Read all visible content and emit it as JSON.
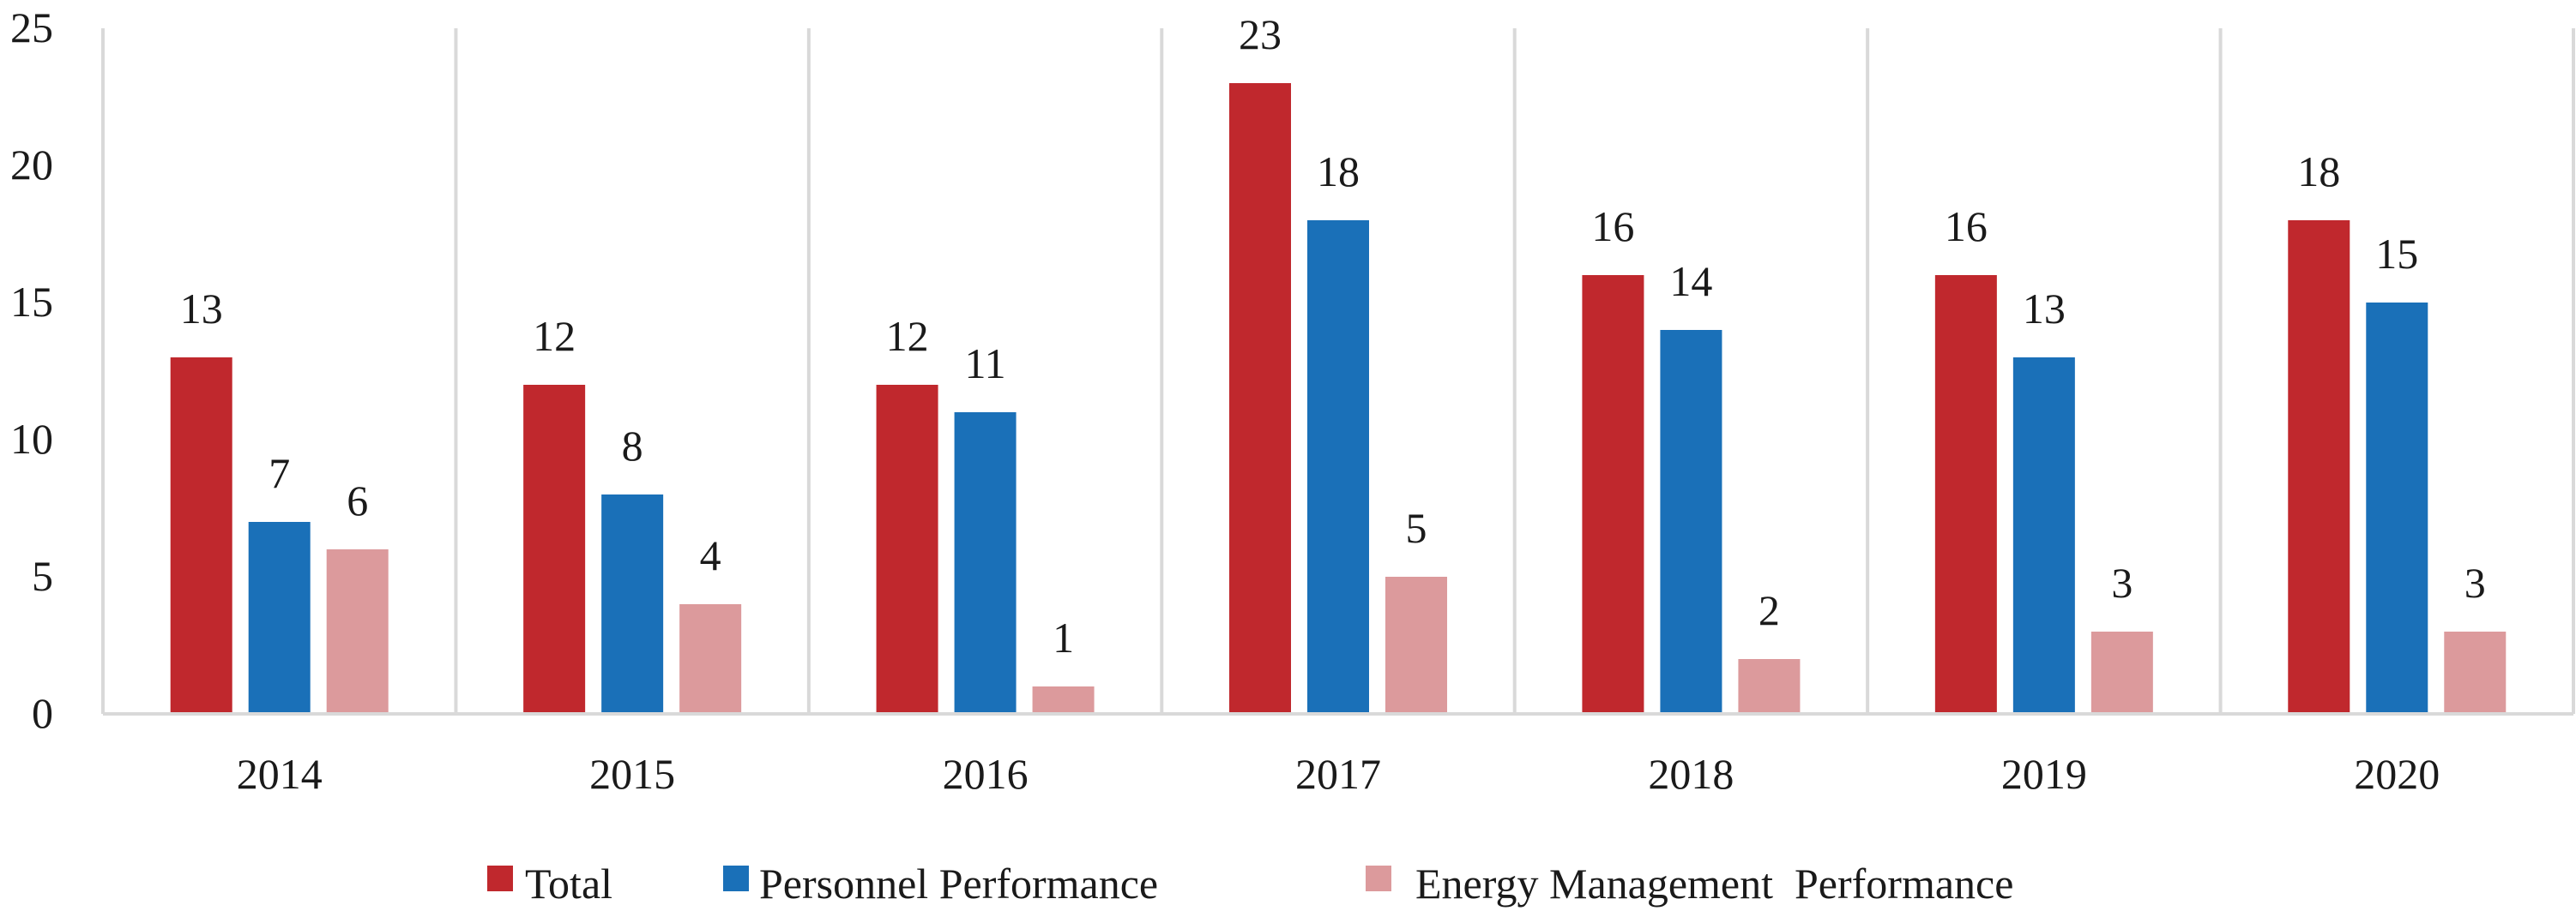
{
  "chart_data": {
    "type": "bar",
    "title": "",
    "xlabel": "",
    "ylabel": "",
    "categories": [
      "2014",
      "2015",
      "2016",
      "2017",
      "2018",
      "2019",
      "2020"
    ],
    "series": [
      {
        "name": "Total",
        "values": [
          13,
          12,
          12,
          23,
          16,
          16,
          18
        ],
        "color": "#c0282d"
      },
      {
        "name": "Personnel Performance",
        "values": [
          7,
          8,
          11,
          18,
          14,
          13,
          15
        ],
        "color": "#1a70b8"
      },
      {
        "name": "Energy Management  Performance",
        "values": [
          6,
          4,
          1,
          5,
          2,
          3,
          3
        ],
        "color": "#dc9a9c"
      }
    ],
    "ylim": [
      0,
      25
    ],
    "yticks": [
      0,
      5,
      10,
      15,
      20,
      25
    ],
    "grid": "vertical category separators",
    "legend_position": "bottom-center",
    "data_labels": true
  }
}
